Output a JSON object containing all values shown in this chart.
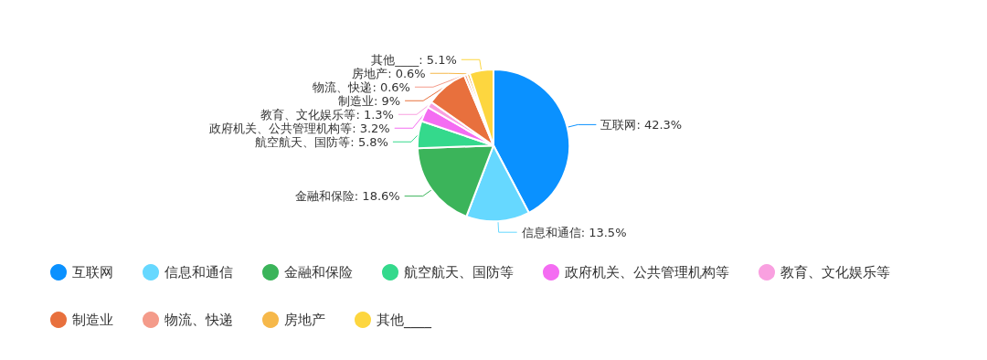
{
  "chart_data": {
    "type": "pie",
    "categories": [
      "互联网",
      "信息和通信",
      "金融和保险",
      "航空航天、国防等",
      "政府机关、公共管理机构等",
      "教育、文化娱乐等",
      "制造业",
      "物流、快递",
      "房地产",
      "其他____"
    ],
    "values": [
      42.3,
      13.5,
      18.6,
      5.8,
      3.2,
      1.3,
      9,
      0.6,
      0.6,
      5.1
    ],
    "value_labels": [
      "互联网: 42.3%",
      "信息和通信: 13.5%",
      "金融和保险: 18.6%",
      "航空航天、国防等: 5.8%",
      "政府机关、公共管理机构等: 3.2%",
      "教育、文化娱乐等: 1.3%",
      "制造业: 9%",
      "物流、快递: 0.6%",
      "房地产: 0.6%",
      "其他____: 5.1%"
    ],
    "colors": [
      "#0a91ff",
      "#66d8ff",
      "#3bb45a",
      "#34d98c",
      "#f46cf2",
      "#f9a0e0",
      "#e8703d",
      "#f49b8a",
      "#f6b84a",
      "#fdd63f"
    ],
    "legend": "bottom"
  }
}
